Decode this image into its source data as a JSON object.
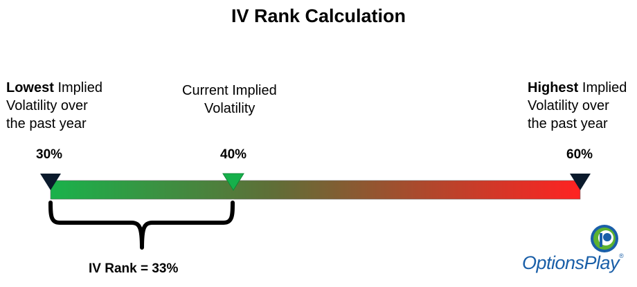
{
  "title": "IV Rank Calculation",
  "lowest": {
    "strong": "Lowest",
    "line1_rest": " Implied",
    "line2": "Volatility over",
    "line3": "the past year",
    "value": "30%"
  },
  "current": {
    "line1": "Current Implied",
    "line2": "Volatility",
    "value": "40%"
  },
  "highest": {
    "strong": "Highest",
    "line1_rest": " Implied",
    "line2": "Volatility over",
    "line3": "the past year",
    "value": "60%"
  },
  "rank_label": "IV Rank = 33%",
  "logo": {
    "wordmark": "OptionsPlay",
    "trademark": "®"
  },
  "colors": {
    "bar_start": "#19b24b",
    "bar_mid": "#5f6e37",
    "bar_end": "#ff2222",
    "current_marker": "#16b04b",
    "end_marker": "#0b1a2c",
    "logo_blue": "#1a5fa8",
    "logo_green": "#5db230"
  }
}
